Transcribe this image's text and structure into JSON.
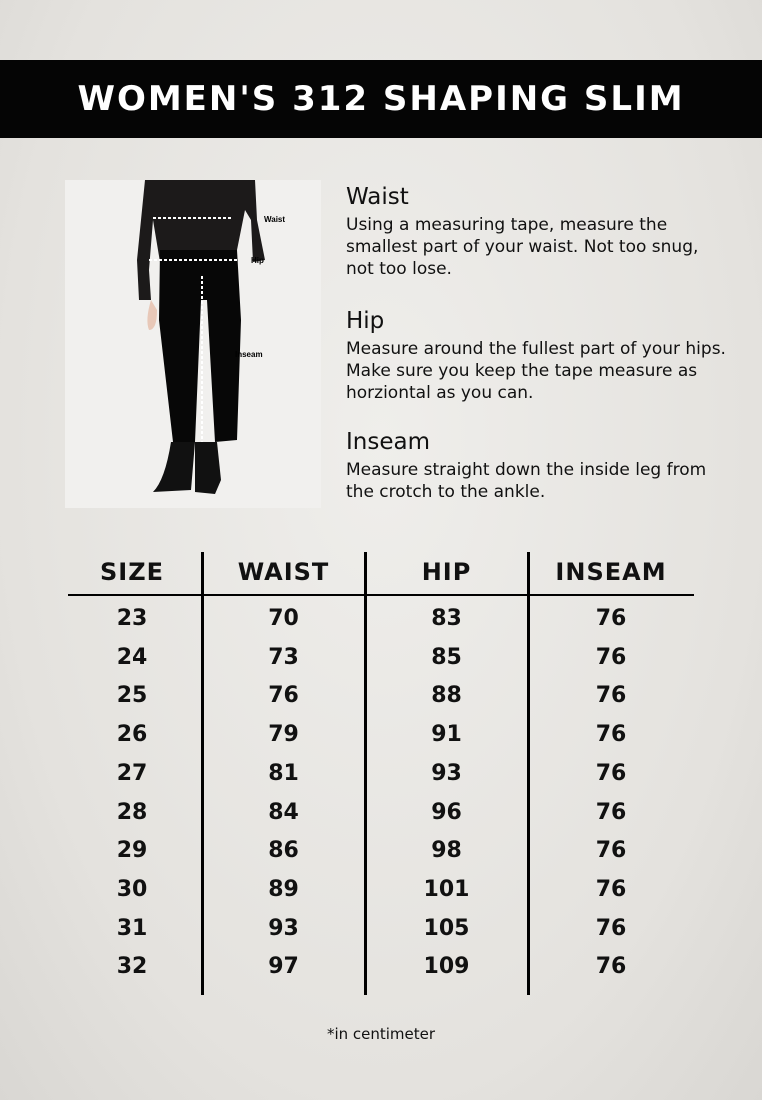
{
  "title": "WOMEN'S 312 SHAPING SLIM",
  "figure": {
    "labels": {
      "waist": "Waist",
      "hip": "Hip",
      "inseam": "Inseam"
    }
  },
  "instructions": [
    {
      "heading": "Waist",
      "text": "Using a measuring tape, measure the smallest part of your waist. Not too snug, not too lose."
    },
    {
      "heading": "Hip",
      "text": "Measure around the fullest part of your hips. Make sure you keep the tape measure as horziontal as you can."
    },
    {
      "heading": "Inseam",
      "text": "Measure straight down the inside leg from the crotch to the ankle."
    }
  ],
  "table": {
    "headers": [
      "SIZE",
      "WAIST",
      "HIP",
      "INSEAM"
    ],
    "rows": [
      [
        "23",
        "70",
        "83",
        "76"
      ],
      [
        "24",
        "73",
        "85",
        "76"
      ],
      [
        "25",
        "76",
        "88",
        "76"
      ],
      [
        "26",
        "79",
        "91",
        "76"
      ],
      [
        "27",
        "81",
        "93",
        "76"
      ],
      [
        "28",
        "84",
        "96",
        "76"
      ],
      [
        "29",
        "86",
        "98",
        "76"
      ],
      [
        "30",
        "89",
        "101",
        "76"
      ],
      [
        "31",
        "93",
        "105",
        "76"
      ],
      [
        "32",
        "97",
        "109",
        "76"
      ]
    ]
  },
  "footnote": "*in centimeter"
}
